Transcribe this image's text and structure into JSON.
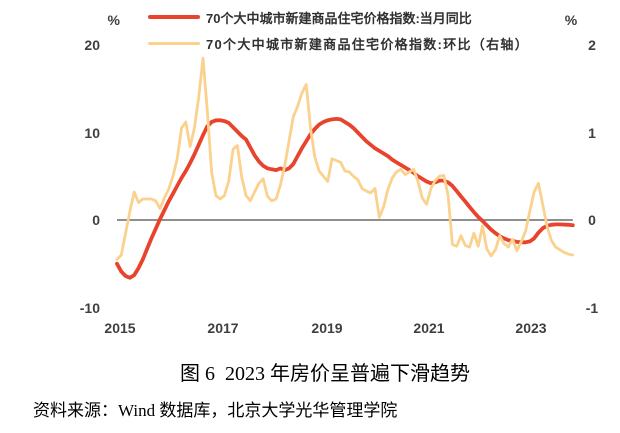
{
  "chart_data": {
    "type": "line",
    "frequency": "monthly",
    "x_start": "2015-01",
    "x_end": "2023-11",
    "x_tick_labels": [
      "2015",
      "2017",
      "2019",
      "2021",
      "2023"
    ],
    "left_axis": {
      "unit": "%",
      "ticks": [
        20,
        10,
        0,
        -10
      ],
      "range": [
        -10,
        20
      ]
    },
    "right_axis": {
      "unit": "%",
      "ticks": [
        2,
        1,
        0,
        -1
      ],
      "range": [
        -1,
        2
      ]
    },
    "zero_line_color": "#7f7f7f",
    "series": [
      {
        "name": "70个大中城市新建商品住宅价格指数:当月同比",
        "axis": "left",
        "color": "#E8432C",
        "width": 3.8,
        "values": [
          -5.0,
          -5.9,
          -6.4,
          -6.6,
          -6.3,
          -5.5,
          -4.5,
          -3.3,
          -2.1,
          -1.0,
          0.1,
          1.1,
          2.1,
          3.0,
          3.9,
          4.8,
          5.6,
          6.5,
          7.5,
          8.6,
          9.7,
          10.7,
          11.2,
          11.4,
          11.4,
          11.3,
          11.1,
          10.6,
          10.1,
          9.6,
          9.2,
          8.3,
          7.4,
          6.7,
          6.2,
          5.9,
          5.8,
          5.7,
          5.9,
          5.7,
          5.9,
          6.4,
          7.3,
          8.2,
          9.0,
          9.8,
          10.4,
          10.9,
          11.2,
          11.4,
          11.5,
          11.55,
          11.5,
          11.2,
          10.9,
          10.5,
          10.0,
          9.5,
          9.0,
          8.6,
          8.2,
          7.9,
          7.6,
          7.3,
          6.9,
          6.6,
          6.3,
          6.0,
          5.7,
          5.4,
          5.0,
          4.7,
          4.4,
          4.2,
          4.3,
          4.5,
          4.5,
          4.3,
          3.9,
          3.3,
          2.7,
          2.1,
          1.5,
          0.9,
          0.35,
          -0.1,
          -0.6,
          -1.1,
          -1.5,
          -1.85,
          -2.1,
          -2.3,
          -2.4,
          -2.5,
          -2.55,
          -2.55,
          -2.45,
          -2.1,
          -1.45,
          -0.95,
          -0.65,
          -0.55,
          -0.5,
          -0.5,
          -0.52,
          -0.55,
          -0.6
        ]
      },
      {
        "name": "70个大中城市新建商品住宅价格指数:环比（右轴）",
        "axis": "right",
        "color": "#FBD18E",
        "width": 2.8,
        "values": [
          -0.45,
          -0.4,
          -0.15,
          0.1,
          0.32,
          0.2,
          0.24,
          0.24,
          0.24,
          0.22,
          0.13,
          0.25,
          0.35,
          0.5,
          0.7,
          1.05,
          1.12,
          0.84,
          1.05,
          1.4,
          1.85,
          1.25,
          0.55,
          0.28,
          0.24,
          0.28,
          0.45,
          0.81,
          0.85,
          0.49,
          0.28,
          0.22,
          0.32,
          0.42,
          0.47,
          0.27,
          0.22,
          0.24,
          0.4,
          0.62,
          0.9,
          1.18,
          1.3,
          1.45,
          1.55,
          1.05,
          0.72,
          0.56,
          0.5,
          0.44,
          0.7,
          0.68,
          0.66,
          0.56,
          0.55,
          0.5,
          0.46,
          0.36,
          0.33,
          0.31,
          0.36,
          0.03,
          0.15,
          0.35,
          0.48,
          0.55,
          0.58,
          0.52,
          0.55,
          0.58,
          0.44,
          0.25,
          0.18,
          0.36,
          0.45,
          0.5,
          0.51,
          0.28,
          -0.28,
          -0.3,
          -0.18,
          -0.29,
          -0.31,
          -0.15,
          -0.3,
          -0.07,
          -0.33,
          -0.41,
          -0.34,
          -0.18,
          -0.27,
          -0.31,
          -0.22,
          -0.35,
          -0.25,
          -0.13,
          0.1,
          0.32,
          0.42,
          0.18,
          -0.07,
          -0.23,
          -0.31,
          -0.34,
          -0.37,
          -0.39,
          -0.4
        ]
      }
    ]
  },
  "legend": [
    {
      "label": "70个大中城市新建商品住宅价格指数:当月同比",
      "color": "#E8432C"
    },
    {
      "label": "70个大中城市新建商品住宅价格指数:环比（右轴）",
      "color": "#FBD18E"
    }
  ],
  "axes_labels": {
    "left_unit": "%",
    "right_unit": "%",
    "left": [
      "20",
      "10",
      "0",
      "-10"
    ],
    "right": [
      "2",
      "1",
      "0",
      "-1"
    ],
    "x": [
      "2015",
      "2017",
      "2019",
      "2021",
      "2023"
    ]
  },
  "caption": "图 6  2023 年房价呈普遍下滑趋势",
  "source": "资料来源：Wind 数据库，北京大学光华管理学院"
}
